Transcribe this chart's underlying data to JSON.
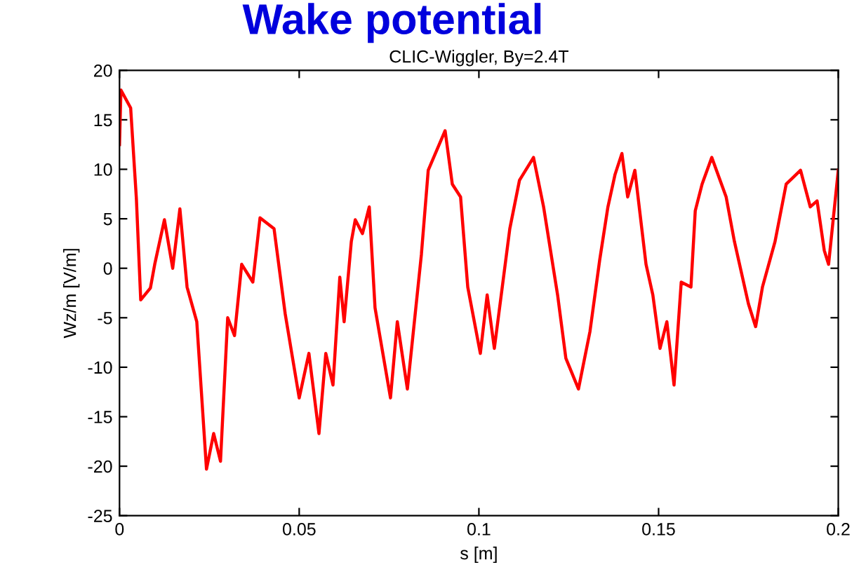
{
  "chart_data": {
    "type": "line",
    "title": "Wake potential",
    "subtitle": "CLIC-Wiggler, By=2.4T",
    "xlabel": "s [m]",
    "ylabel": "Wz/m [V/m]",
    "xlim": [
      0,
      0.2
    ],
    "ylim": [
      -25,
      20
    ],
    "xticks": [
      0,
      0.05,
      0.1,
      0.15,
      0.2
    ],
    "yticks": [
      -25,
      -20,
      -15,
      -10,
      -5,
      0,
      5,
      10,
      15,
      20
    ],
    "grid": false,
    "series": [
      {
        "color": "#ff0000",
        "x": [
          0,
          0.0004,
          0.0031,
          0.0047,
          0.0059,
          0.0086,
          0.0098,
          0.0125,
          0.0148,
          0.0168,
          0.0188,
          0.0215,
          0.0242,
          0.0262,
          0.0281,
          0.0301,
          0.032,
          0.034,
          0.0371,
          0.0391,
          0.043,
          0.0461,
          0.05,
          0.0527,
          0.0555,
          0.0574,
          0.0594,
          0.0613,
          0.0625,
          0.0645,
          0.0656,
          0.0676,
          0.0695,
          0.0711,
          0.0754,
          0.0773,
          0.0801,
          0.084,
          0.0859,
          0.0906,
          0.0926,
          0.0949,
          0.0969,
          0.1004,
          0.1023,
          0.1043,
          0.1086,
          0.1113,
          0.1152,
          0.118,
          0.1219,
          0.1242,
          0.1277,
          0.1309,
          0.1336,
          0.1359,
          0.1379,
          0.1398,
          0.1414,
          0.1434,
          0.1465,
          0.1484,
          0.1504,
          0.1523,
          0.1543,
          0.1563,
          0.159,
          0.1602,
          0.1621,
          0.1648,
          0.1688,
          0.1711,
          0.175,
          0.177,
          0.1789,
          0.1824,
          0.1855,
          0.1895,
          0.1922,
          0.1941,
          0.1961,
          0.1973,
          0.2
        ],
        "values": [
          12.5,
          18,
          16.2,
          7,
          -3.2,
          -2,
          0.4,
          4.9,
          0,
          6,
          -1.9,
          -5.4,
          -20.3,
          -16.7,
          -19.5,
          -5,
          -6.8,
          0.4,
          -1.4,
          5.1,
          4,
          -4.6,
          -13.1,
          -8.6,
          -16.7,
          -8.6,
          -11.8,
          -0.9,
          -5.4,
          2.7,
          4.9,
          3.5,
          6.2,
          -4,
          -13.1,
          -5.4,
          -12.2,
          1.4,
          9.9,
          13.9,
          8.5,
          7.2,
          -1.9,
          -8.6,
          -2.7,
          -8.1,
          4,
          8.9,
          11.2,
          6.2,
          -2.7,
          -9.1,
          -12.2,
          -6.4,
          0.8,
          6.2,
          9.5,
          11.6,
          7.2,
          9.9,
          0.4,
          -2.7,
          -8.1,
          -5.4,
          -11.8,
          -1.4,
          -1.9,
          5.8,
          8.5,
          11.2,
          7.2,
          2.7,
          -3.6,
          -5.9,
          -1.9,
          2.7,
          8.5,
          9.9,
          6.2,
          6.8,
          1.8,
          0.4,
          9.9
        ]
      }
    ]
  }
}
